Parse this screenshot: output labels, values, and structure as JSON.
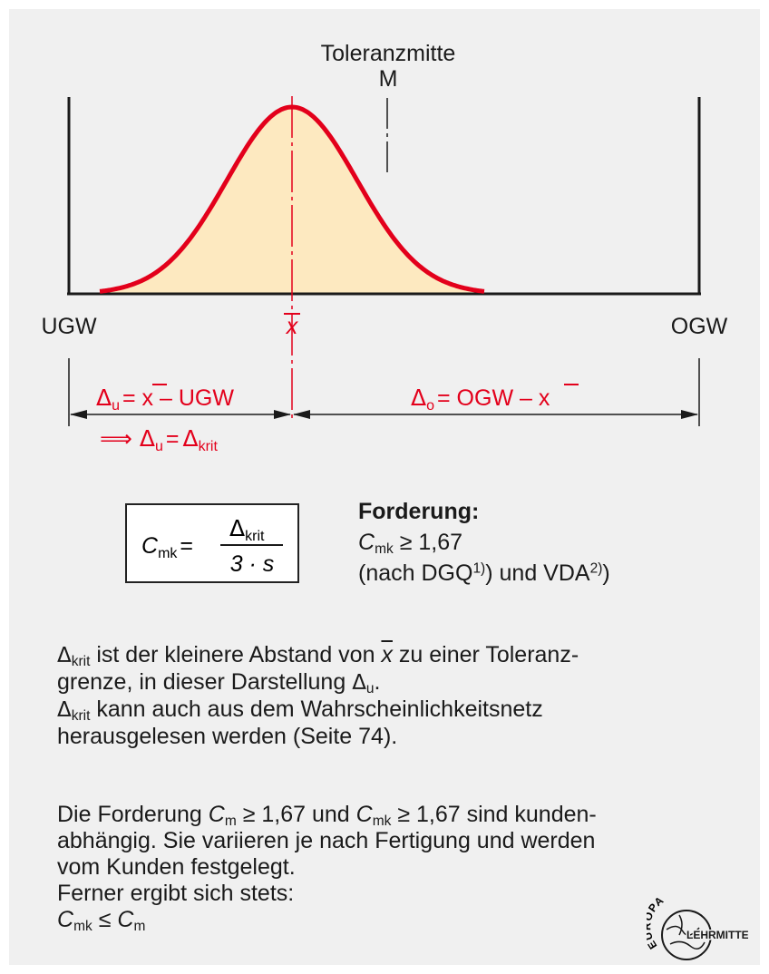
{
  "diagram": {
    "label_tolerance_center": "Toleranzmitte",
    "label_m": "M",
    "label_lower_limit": "UGW",
    "label_upper_limit": "OGW",
    "label_mean": "x",
    "delta_symbol": "Δ",
    "delta_u_sub": "u",
    "delta_u_expr": "= x – UGW",
    "delta_o_sub": "o",
    "delta_o_expr": "= OGW – x",
    "implies_symbol": "⟹",
    "delta_crit_sub": "krit",
    "accent_color": "#e3001b",
    "fill_color": "#fde9c0"
  },
  "formula": {
    "lhs": "C",
    "lhs_sub": "mk",
    "numerator": "Δ",
    "numerator_sub": "krit",
    "denominator": "3 · s"
  },
  "requirement": {
    "title": "Forderung:",
    "line1_sym": "C",
    "line1_sub": "mk",
    "line1_rest": "≥ 1,67",
    "line2_a": "(nach DGQ",
    "line2_sup1": "1)",
    "line2_b": ") und VDA",
    "line2_sup2": "2)",
    "line2_c": ")"
  },
  "text1": {
    "sym": "Δ",
    "sub": "krit",
    "a": "ist der kleinere Abstand von",
    "xbar": "x",
    "b": "zu einer Toleranz-",
    "c": "grenze, in dieser Darstellung",
    "sym2": "Δ",
    "sub2": "u",
    "d": ".",
    "line3_sym": "Δ",
    "line3_sub": "krit",
    "line3": "kann auch aus dem Wahrscheinlichkeitsnetz",
    "line4": "herausgelesen werden (Seite 74)."
  },
  "text2": {
    "a": "Die Forderung",
    "c1": "C",
    "c1_sub": "m",
    "b": "≥ 1,67 und",
    "c2": "C",
    "c2_sub": "mk",
    "c": "≥ 1,67 sind kunden-",
    "line2": "abhängig. Sie variieren je nach Fertigung und werden",
    "line3": "vom Kunden festgelegt.",
    "line4": "Ferner ergibt sich stets:",
    "last_c1": "C",
    "last_c1_sub": "mk",
    "last_op": "≤",
    "last_c2": "C",
    "last_c2_sub": "m"
  },
  "logo": {
    "top": "EUROPA",
    "bottom": "LEHRMITTEL"
  }
}
